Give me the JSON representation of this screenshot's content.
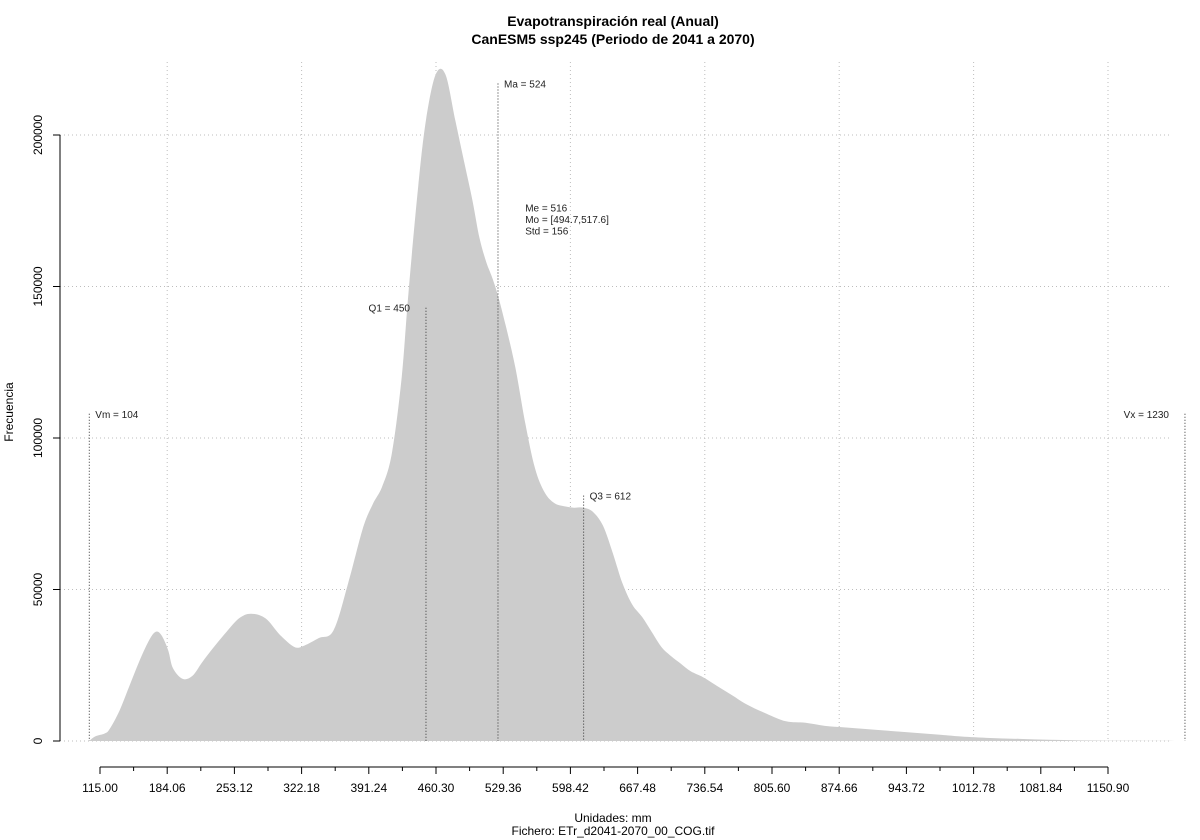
{
  "chart_data": {
    "type": "area",
    "title": "Evapotranspiración real (Anual)",
    "subtitle": "CanESM5 ssp245 (Periodo de 2041 a 2070)",
    "xlabel": "Unidades: mm",
    "caption": "Fichero: ETr_d2041-2070_00_COG.tif",
    "ylabel": "Frecuencia",
    "xlim": [
      90,
      1240
    ],
    "ylim": [
      0,
      222000
    ],
    "grid": true,
    "fill_color": "#cccccc",
    "x_tick_labels": [
      "115.00",
      "184.06",
      "253.12",
      "322.18",
      "391.24",
      "460.30",
      "529.36",
      "598.42",
      "667.48",
      "736.54",
      "805.60",
      "874.66",
      "943.72",
      "1012.78",
      "1081.84",
      "1150.90"
    ],
    "y_ticks": [
      0,
      50000,
      100000,
      150000,
      200000
    ],
    "y_tick_labels": [
      "0",
      "50000",
      "100000",
      "150000",
      "200000"
    ],
    "density": {
      "x": [
        104,
        110,
        120,
        125,
        135,
        145,
        155,
        165,
        172,
        178,
        185,
        190,
        200,
        210,
        220,
        232,
        245,
        258,
        270,
        285,
        300,
        315,
        325,
        340,
        355,
        370,
        385,
        395,
        405,
        415,
        425,
        432,
        442,
        450,
        460,
        470,
        480,
        490,
        498,
        505,
        512,
        518,
        524,
        532,
        542,
        552,
        562,
        572,
        582,
        592,
        602,
        612,
        622,
        632,
        642,
        652,
        662,
        672,
        682,
        692,
        702,
        712,
        722,
        735,
        750,
        765,
        780,
        800,
        820,
        840,
        860,
        880,
        900,
        920,
        940,
        960,
        980,
        1000,
        1030,
        1060,
        1090,
        1120,
        1150,
        1180,
        1210,
        1230
      ],
      "y": [
        0,
        1500,
        2500,
        4000,
        10000,
        18000,
        26000,
        33000,
        36000,
        35000,
        30000,
        24000,
        20500,
        21500,
        26000,
        31000,
        36000,
        40500,
        42000,
        40500,
        35000,
        31000,
        31500,
        34000,
        36500,
        52000,
        70000,
        78000,
        84000,
        95000,
        120000,
        148000,
        183000,
        205000,
        220000,
        220000,
        205000,
        190000,
        178000,
        166000,
        158000,
        153000,
        147000,
        137000,
        123000,
        105000,
        90000,
        82000,
        78500,
        77500,
        77000,
        77000,
        75500,
        71000,
        62000,
        52000,
        45000,
        41000,
        36000,
        31000,
        28000,
        25500,
        23000,
        21000,
        18000,
        15000,
        12000,
        9000,
        6500,
        6000,
        5000,
        4500,
        4000,
        3500,
        3000,
        2500,
        2000,
        1500,
        1000,
        700,
        400,
        200,
        100,
        50,
        20,
        0
      ]
    },
    "markers": [
      {
        "label": "Vm = 104",
        "x": 104,
        "top": 108000,
        "label_side": "right"
      },
      {
        "label": "Q1 = 450",
        "x": 450,
        "top": 143000,
        "label_side": "left"
      },
      {
        "label": "Ma = 524",
        "x": 524,
        "top": 217000,
        "label_side": "right"
      },
      {
        "label": "Q3 = 612",
        "x": 612,
        "top": 81000,
        "label_side": "right"
      },
      {
        "label": "Vx = 1230",
        "x": 1230,
        "top": 108000,
        "label_side": "left"
      }
    ],
    "stats_block": {
      "x": 552,
      "y_top": 176000,
      "lines": [
        "Me = 516",
        "Mo = [494.7,517.6]",
        "Std = 156"
      ]
    }
  }
}
